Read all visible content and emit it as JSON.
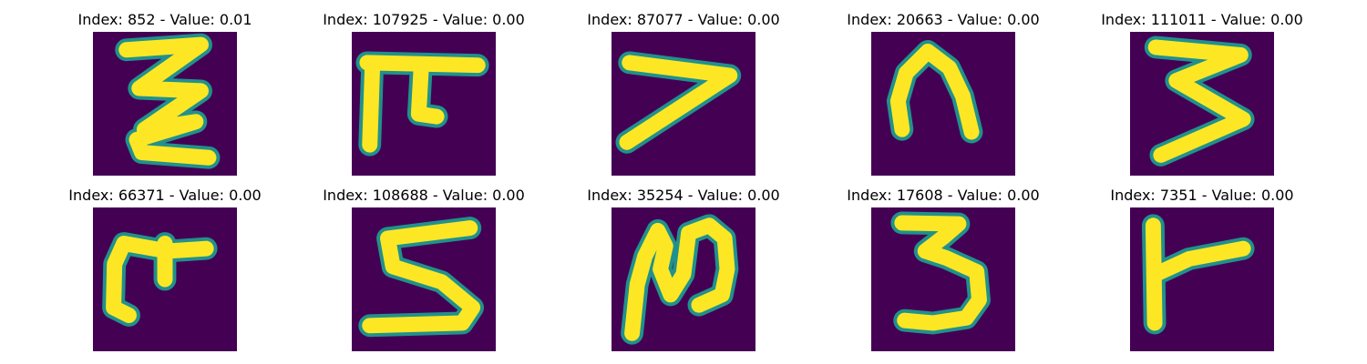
{
  "figure": {
    "colors": {
      "background": "#440154",
      "stroke_core": "#fde725",
      "stroke_edge": "#21918c"
    },
    "panels": [
      {
        "title": "Index: 852 - Value: 0.01",
        "glyph": "zigzag"
      },
      {
        "title": "Index: 107925 - Value: 0.00",
        "glyph": "pi-shape"
      },
      {
        "title": "Index: 87077 - Value: 0.00",
        "glyph": "seven-slant"
      },
      {
        "title": "Index: 20663 - Value: 0.00",
        "glyph": "arch"
      },
      {
        "title": "Index: 111011 - Value: 0.00",
        "glyph": "three-angular"
      },
      {
        "title": "Index: 66371 - Value: 0.00",
        "glyph": "hook-with-cross"
      },
      {
        "title": "Index: 108688 - Value: 0.00",
        "glyph": "s-shape"
      },
      {
        "title": "Index: 35254 - Value: 0.00",
        "glyph": "loop-n"
      },
      {
        "title": "Index: 17608 - Value: 0.00",
        "glyph": "three"
      },
      {
        "title": "Index: 7351 - Value: 0.00",
        "glyph": "t-shape"
      }
    ]
  }
}
